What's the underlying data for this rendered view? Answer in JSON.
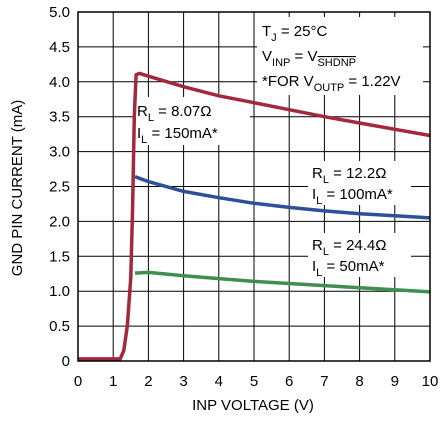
{
  "chart_data": {
    "type": "line",
    "xlabel": "INP VOLTAGE (V)",
    "ylabel": "GND PIN CURRENT (mA)",
    "xlim": [
      0,
      10
    ],
    "ylim": [
      0,
      5
    ],
    "x_ticks": [
      "0",
      "1",
      "2",
      "3",
      "4",
      "5",
      "6",
      "7",
      "8",
      "9",
      "10"
    ],
    "y_ticks": [
      "0",
      "0.5",
      "1.0",
      "1.5",
      "2.0",
      "2.5",
      "3.0",
      "3.5",
      "4.0",
      "4.5",
      "5.0"
    ],
    "grid": true,
    "conditions": {
      "tj": {
        "prefix": "T",
        "sub": "J",
        "rest": " = 25°C"
      },
      "vinp": {
        "v1": "V",
        "sub1": "INP",
        "mid": " = V",
        "sub2": "SHDNP"
      },
      "note": {
        "pre": "*FOR V",
        "sub": "OUTP",
        "rest": " = 1.22V"
      }
    },
    "series": [
      {
        "color": "#a4283c",
        "label_r": {
          "pre": "R",
          "sub": "L",
          "rest": " = 8.07Ω"
        },
        "label_i": {
          "pre": "I",
          "sub": "L",
          "rest": " = 150mA*"
        },
        "points": [
          [
            0,
            0.03
          ],
          [
            1.2,
            0.03
          ],
          [
            1.3,
            0.15
          ],
          [
            1.4,
            0.5
          ],
          [
            1.5,
            1.2
          ],
          [
            1.55,
            2.2
          ],
          [
            1.6,
            3.5
          ],
          [
            1.65,
            4.1
          ],
          [
            1.75,
            4.12
          ],
          [
            2,
            4.08
          ],
          [
            3,
            3.93
          ],
          [
            4,
            3.8
          ],
          [
            5,
            3.7
          ],
          [
            6,
            3.6
          ],
          [
            7,
            3.5
          ],
          [
            8,
            3.41
          ],
          [
            9,
            3.32
          ],
          [
            10,
            3.23
          ]
        ]
      },
      {
        "color": "#2f4f9a",
        "label_r": {
          "pre": "R",
          "sub": "L",
          "rest": " = 12.2Ω"
        },
        "label_i": {
          "pre": "I",
          "sub": "L",
          "rest": " = 100mA*"
        },
        "points": [
          [
            1.62,
            2.64
          ],
          [
            2,
            2.57
          ],
          [
            3,
            2.43
          ],
          [
            4,
            2.34
          ],
          [
            5,
            2.26
          ],
          [
            6,
            2.2
          ],
          [
            7,
            2.15
          ],
          [
            8,
            2.11
          ],
          [
            9,
            2.08
          ],
          [
            10,
            2.05
          ]
        ]
      },
      {
        "color": "#3f8f4f",
        "label_r": {
          "pre": "R",
          "sub": "L",
          "rest": " = 24.4Ω"
        },
        "label_i": {
          "pre": "I",
          "sub": "L",
          "rest": " = 50mA*"
        },
        "points": [
          [
            1.62,
            1.26
          ],
          [
            2,
            1.27
          ],
          [
            3,
            1.22
          ],
          [
            4,
            1.18
          ],
          [
            5,
            1.14
          ],
          [
            6,
            1.11
          ],
          [
            7,
            1.08
          ],
          [
            8,
            1.05
          ],
          [
            9,
            1.02
          ],
          [
            10,
            0.99
          ]
        ]
      }
    ]
  }
}
